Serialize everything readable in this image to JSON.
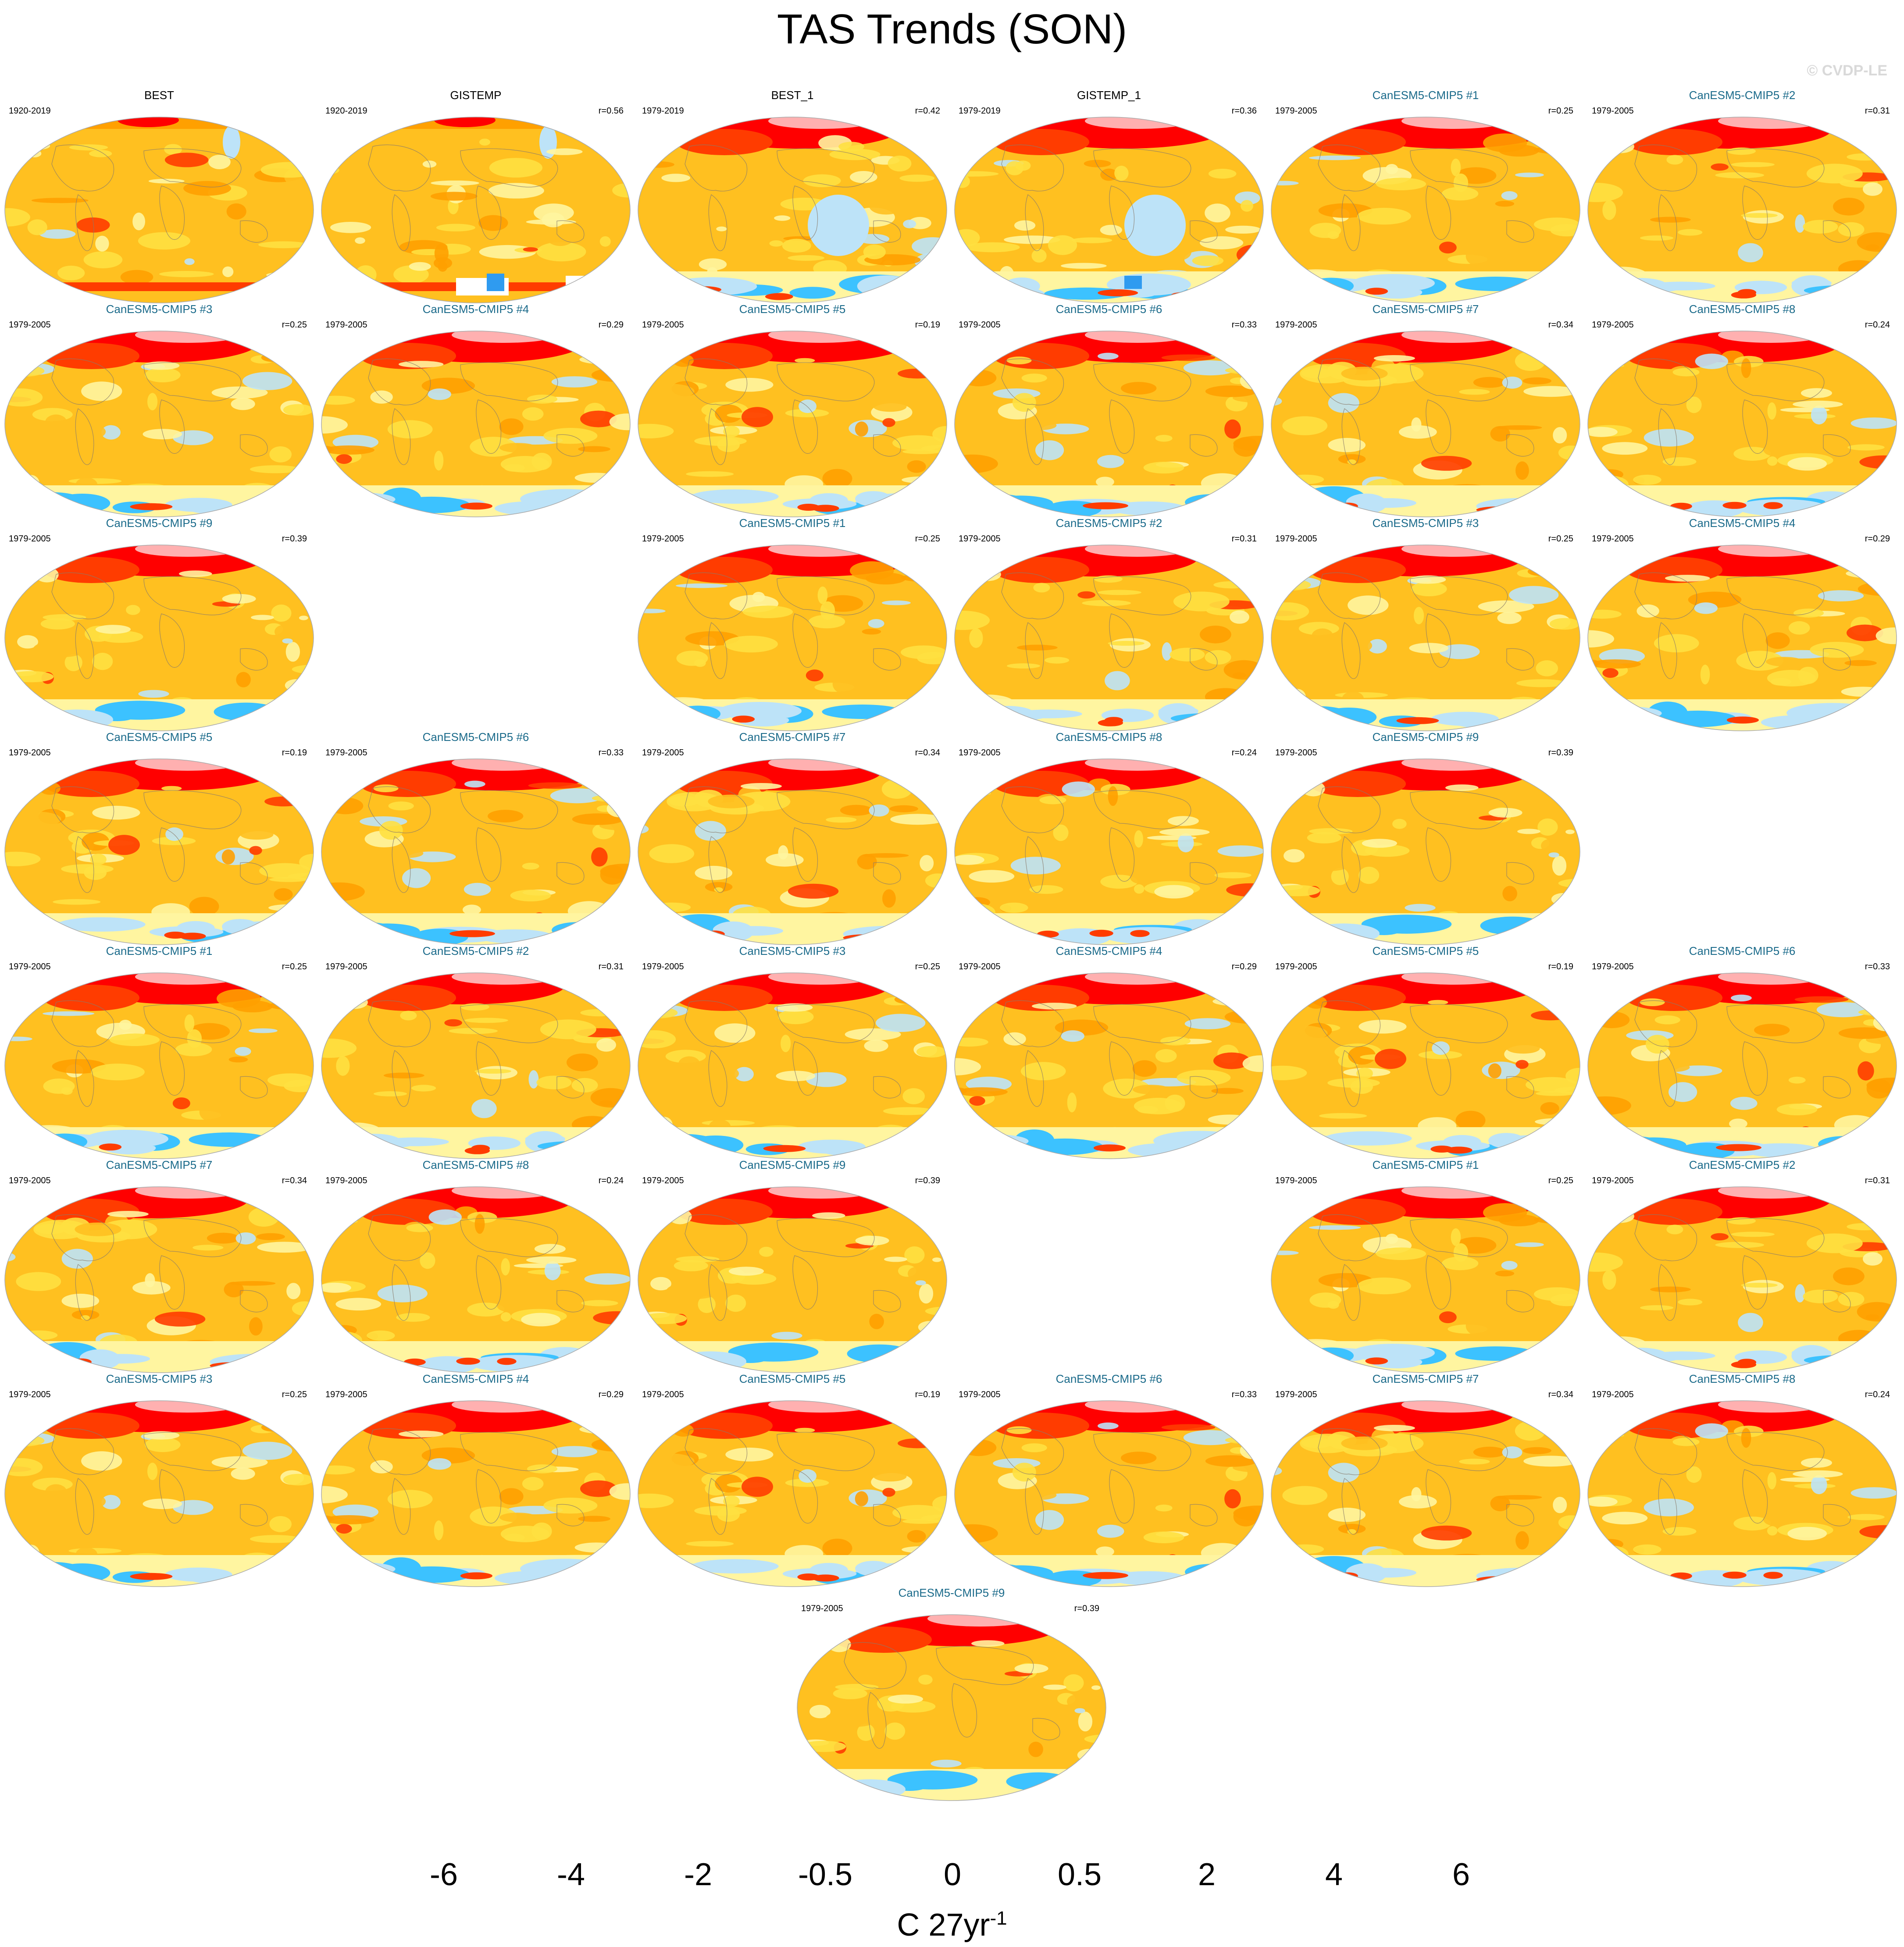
{
  "title": "TAS Trends (SON)",
  "watermark": "© CVDP-LE",
  "panels": [
    {
      "title": "BEST",
      "period": "1920-2019",
      "r": "",
      "kind": "obs",
      "variant": 0
    },
    {
      "title": "GISTEMP",
      "period": "1920-2019",
      "r": "r=0.56",
      "kind": "obs",
      "variant": 1
    },
    {
      "title": "BEST_1",
      "period": "1979-2019",
      "r": "r=0.42",
      "kind": "obs",
      "variant": 2
    },
    {
      "title": "GISTEMP_1",
      "period": "1979-2019",
      "r": "r=0.36",
      "kind": "obs",
      "variant": 3
    },
    {
      "title": "CanESM5-CMIP5 #1",
      "period": "1979-2005",
      "r": "r=0.25",
      "kind": "model",
      "variant": 4
    },
    {
      "title": "CanESM5-CMIP5 #2",
      "period": "1979-2005",
      "r": "r=0.31",
      "kind": "model",
      "variant": 5
    },
    {
      "title": "CanESM5-CMIP5 #3",
      "period": "1979-2005",
      "r": "r=0.25",
      "kind": "model",
      "variant": 6
    },
    {
      "title": "CanESM5-CMIP5 #4",
      "period": "1979-2005",
      "r": "r=0.29",
      "kind": "model",
      "variant": 7
    },
    {
      "title": "CanESM5-CMIP5 #5",
      "period": "1979-2005",
      "r": "r=0.19",
      "kind": "model",
      "variant": 8
    },
    {
      "title": "CanESM5-CMIP5 #6",
      "period": "1979-2005",
      "r": "r=0.33",
      "kind": "model",
      "variant": 9
    },
    {
      "title": "CanESM5-CMIP5 #7",
      "period": "1979-2005",
      "r": "r=0.34",
      "kind": "model",
      "variant": 10
    },
    {
      "title": "CanESM5-CMIP5 #8",
      "period": "1979-2005",
      "r": "r=0.24",
      "kind": "model",
      "variant": 11
    },
    {
      "title": "CanESM5-CMIP5 #9",
      "period": "1979-2005",
      "r": "r=0.39",
      "kind": "model",
      "variant": 12
    },
    {
      "title": "CanESM5-CMIP5 #1",
      "period": "1979-2005",
      "r": "r=0.25",
      "kind": "model",
      "variant": 4
    },
    {
      "title": "CanESM5-CMIP5 #2",
      "period": "1979-2005",
      "r": "r=0.31",
      "kind": "model",
      "variant": 5
    },
    {
      "title": "CanESM5-CMIP5 #3",
      "period": "1979-2005",
      "r": "r=0.25",
      "kind": "model",
      "variant": 6
    },
    {
      "title": "CanESM5-CMIP5 #4",
      "period": "1979-2005",
      "r": "r=0.29",
      "kind": "model",
      "variant": 7
    },
    {
      "title": "CanESM5-CMIP5 #5",
      "period": "1979-2005",
      "r": "r=0.19",
      "kind": "model",
      "variant": 8
    },
    {
      "title": "CanESM5-CMIP5 #6",
      "period": "1979-2005",
      "r": "r=0.33",
      "kind": "model",
      "variant": 9
    },
    {
      "title": "CanESM5-CMIP5 #7",
      "period": "1979-2005",
      "r": "r=0.34",
      "kind": "model",
      "variant": 10
    },
    {
      "title": "CanESM5-CMIP5 #8",
      "period": "1979-2005",
      "r": "r=0.24",
      "kind": "model",
      "variant": 11
    },
    {
      "title": "CanESM5-CMIP5 #9",
      "period": "1979-2005",
      "r": "r=0.39",
      "kind": "model",
      "variant": 12
    },
    {
      "title": "CanESM5-CMIP5 #1",
      "period": "1979-2005",
      "r": "r=0.25",
      "kind": "model",
      "variant": 4
    },
    {
      "title": "CanESM5-CMIP5 #2",
      "period": "1979-2005",
      "r": "r=0.31",
      "kind": "model",
      "variant": 5
    },
    {
      "title": "CanESM5-CMIP5 #3",
      "period": "1979-2005",
      "r": "r=0.25",
      "kind": "model",
      "variant": 6
    },
    {
      "title": "CanESM5-CMIP5 #4",
      "period": "1979-2005",
      "r": "r=0.29",
      "kind": "model",
      "variant": 7
    },
    {
      "title": "CanESM5-CMIP5 #5",
      "period": "1979-2005",
      "r": "r=0.19",
      "kind": "model",
      "variant": 8
    },
    {
      "title": "CanESM5-CMIP5 #6",
      "period": "1979-2005",
      "r": "r=0.33",
      "kind": "model",
      "variant": 9
    },
    {
      "title": "CanESM5-CMIP5 #7",
      "period": "1979-2005",
      "r": "r=0.34",
      "kind": "model",
      "variant": 10
    },
    {
      "title": "CanESM5-CMIP5 #8",
      "period": "1979-2005",
      "r": "r=0.24",
      "kind": "model",
      "variant": 11
    },
    {
      "title": "CanESM5-CMIP5 #9",
      "period": "1979-2005",
      "r": "r=0.39",
      "kind": "model",
      "variant": 12
    },
    {
      "title": "CanESM5-CMIP5 #1",
      "period": "1979-2005",
      "r": "r=0.25",
      "kind": "model",
      "variant": 4
    },
    {
      "title": "CanESM5-CMIP5 #2",
      "period": "1979-2005",
      "r": "r=0.31",
      "kind": "model",
      "variant": 5
    },
    {
      "title": "CanESM5-CMIP5 #3",
      "period": "1979-2005",
      "r": "r=0.25",
      "kind": "model",
      "variant": 6
    },
    {
      "title": "CanESM5-CMIP5 #4",
      "period": "1979-2005",
      "r": "r=0.29",
      "kind": "model",
      "variant": 7
    },
    {
      "title": "CanESM5-CMIP5 #5",
      "period": "1979-2005",
      "r": "r=0.19",
      "kind": "model",
      "variant": 8
    },
    {
      "title": "CanESM5-CMIP5 #6",
      "period": "1979-2005",
      "r": "r=0.33",
      "kind": "model",
      "variant": 9
    },
    {
      "title": "CanESM5-CMIP5 #7",
      "period": "1979-2005",
      "r": "r=0.34",
      "kind": "model",
      "variant": 10
    },
    {
      "title": "CanESM5-CMIP5 #8",
      "period": "1979-2005",
      "r": "r=0.24",
      "kind": "model",
      "variant": 11
    },
    {
      "title": "CanESM5-CMIP5 #9",
      "period": "1979-2005",
      "r": "r=0.39",
      "kind": "model",
      "variant": 12
    }
  ],
  "colorbar": {
    "colors": [
      "#7a1cf0",
      "#3b12f5",
      "#1a28f0",
      "#3658e0",
      "#2f72ec",
      "#1e90ff",
      "#00b0ff",
      "#3cc2ff",
      "#96d2f0",
      "#bde3f8",
      "#fff5a0",
      "#ffe040",
      "#ffc020",
      "#ffa000",
      "#ff7a00",
      "#ff3c00",
      "#ff0000",
      "#d40000",
      "#d83838",
      "#ffb0b0"
    ],
    "labels": [
      "-6",
      "-4",
      "-2",
      "-0.5",
      "0",
      "0.5",
      "2",
      "4",
      "6"
    ],
    "unit": "C 27yr",
    "unit_exp": "-1"
  }
}
